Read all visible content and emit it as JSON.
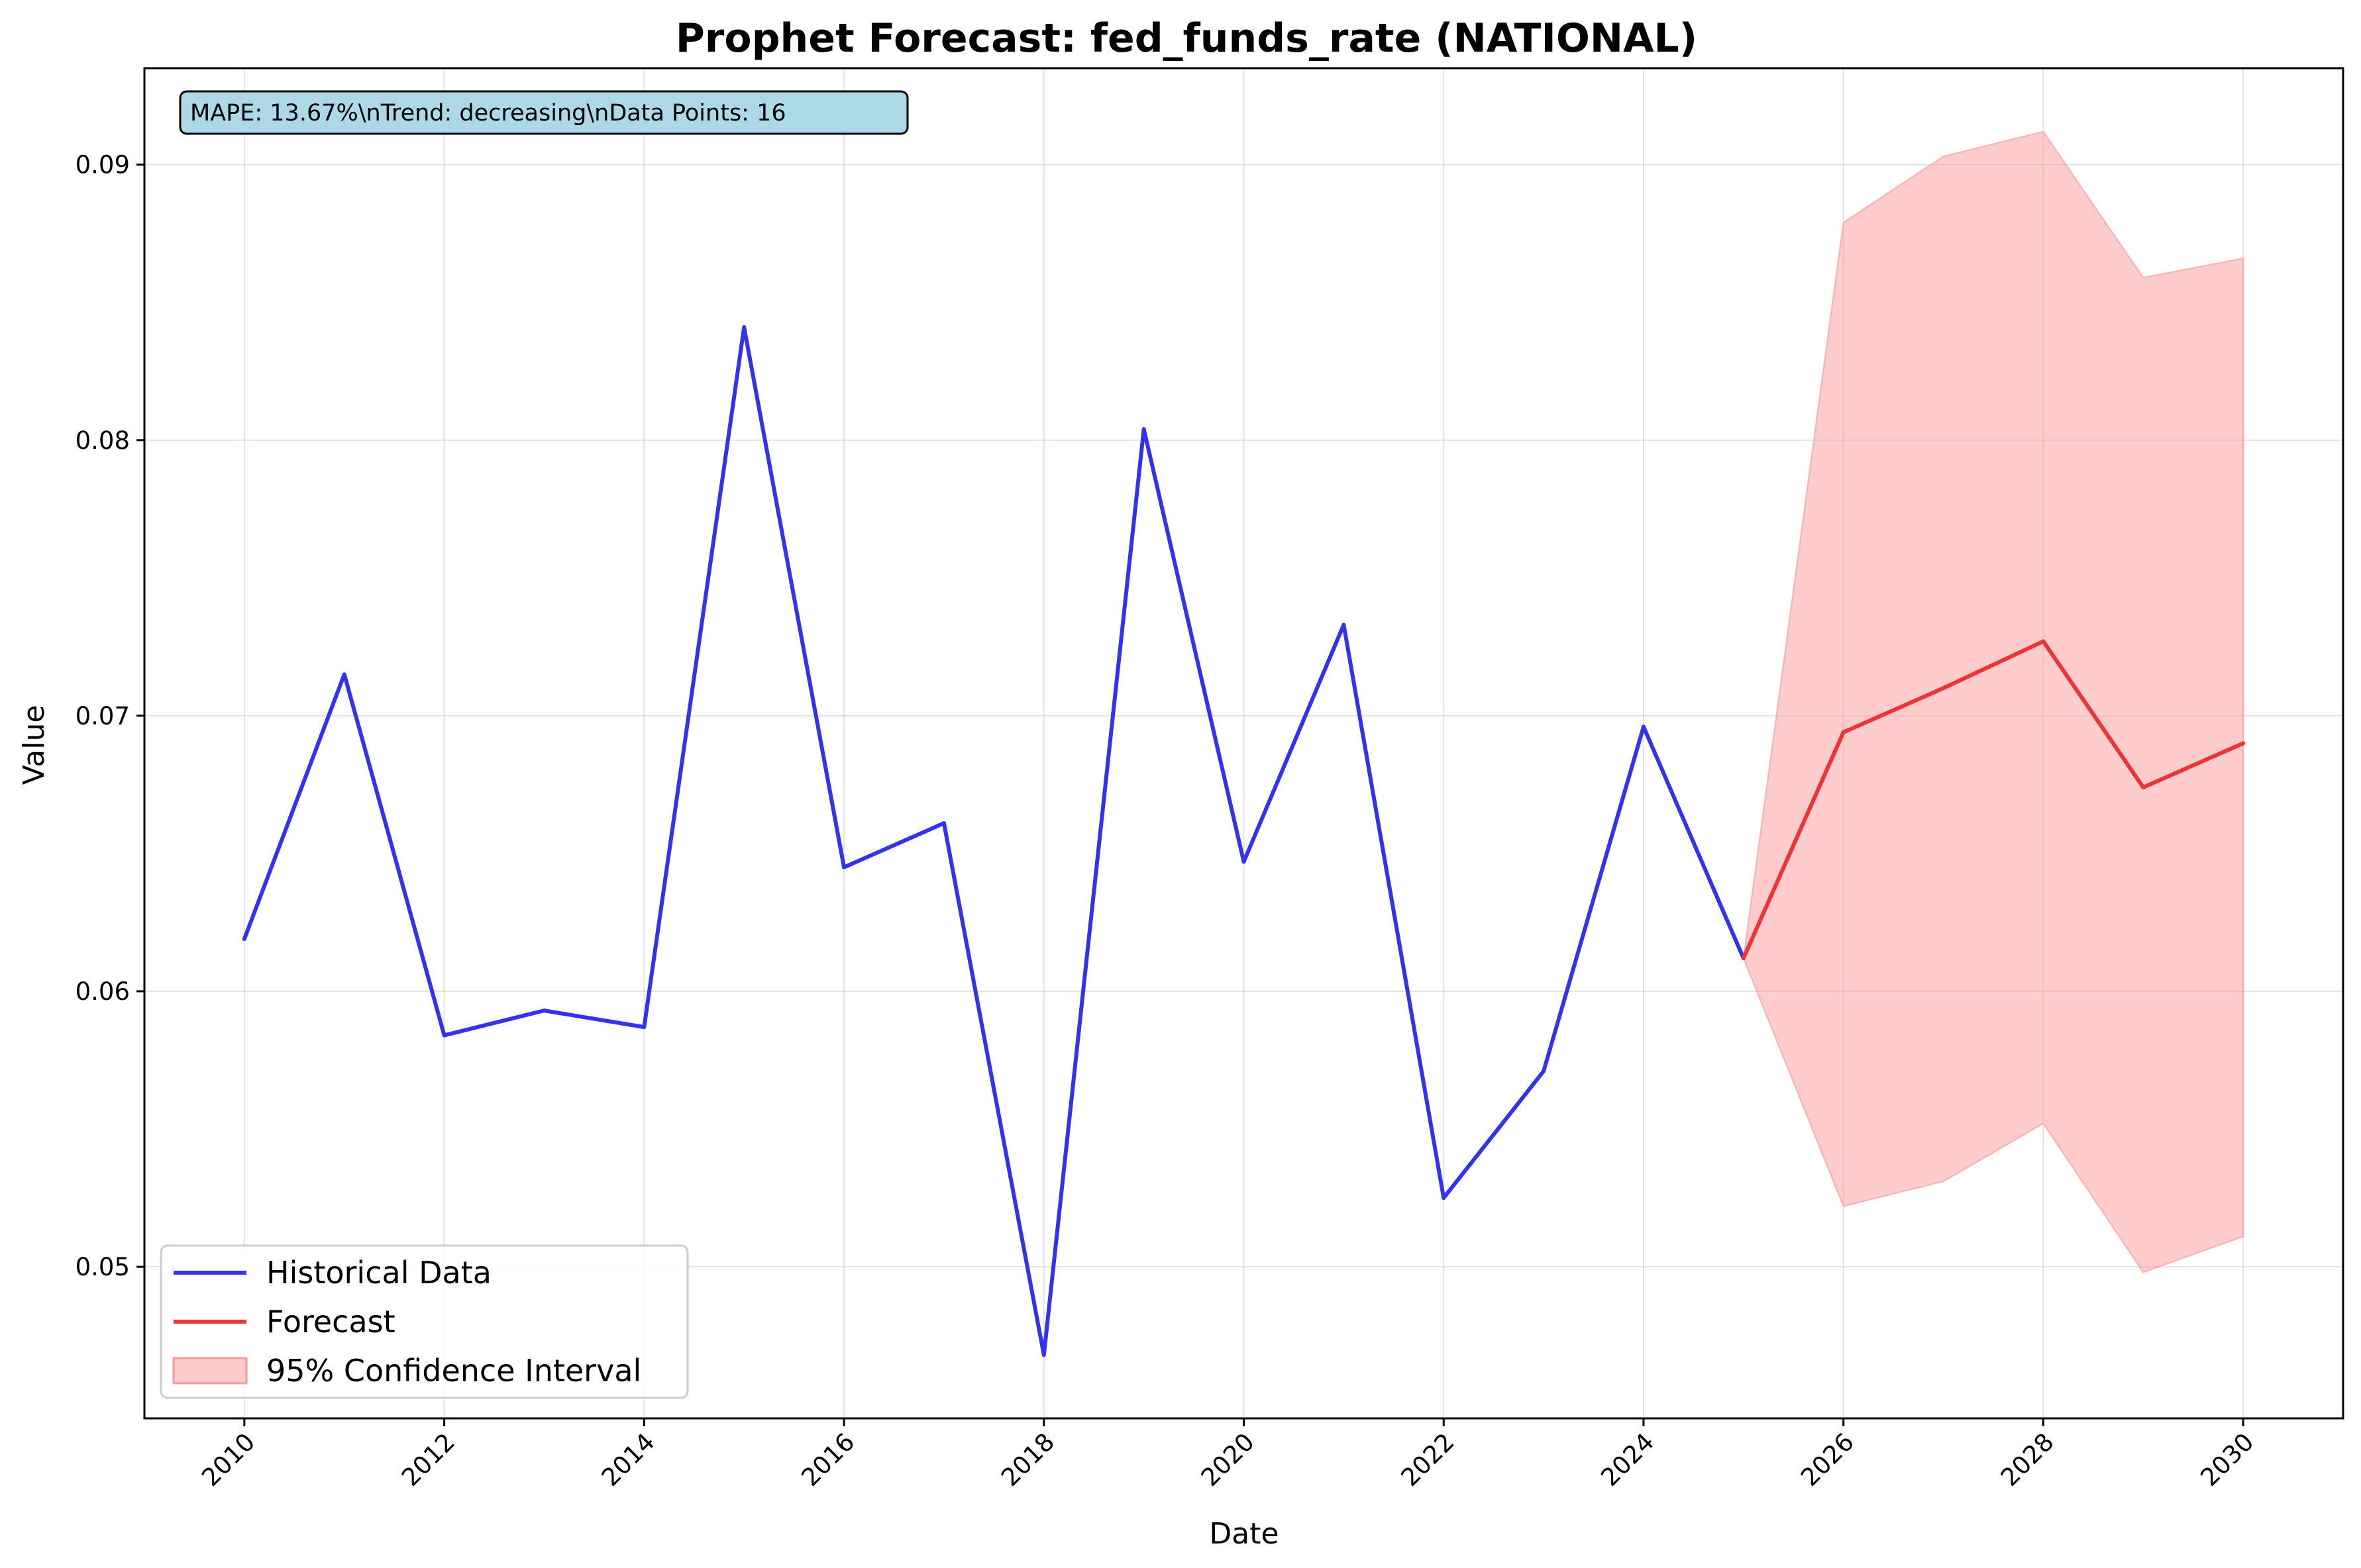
{
  "chart_data": {
    "type": "line",
    "title": "Prophet Forecast: fed_funds_rate (NATIONAL)",
    "xlabel": "Date",
    "ylabel": "Value",
    "xlim": [
      2009.0,
      2031.0
    ],
    "ylim": [
      0.0445,
      0.0935
    ],
    "x_ticks": [
      "2010",
      "2012",
      "2014",
      "2016",
      "2018",
      "2020",
      "2022",
      "2024",
      "2026",
      "2028",
      "2030"
    ],
    "y_ticks": [
      "0.05",
      "0.06",
      "0.07",
      "0.08",
      "0.09"
    ],
    "grid": true,
    "legend_position": "lower-left",
    "annotation": "MAPE: 13.67%\\nTrend: decreasing\\nData Points: 16",
    "series": [
      {
        "name": "Historical Data",
        "kind": "line",
        "color": "#3333ee",
        "x": [
          2010,
          2011,
          2012,
          2013,
          2014,
          2015,
          2016,
          2017,
          2018,
          2019,
          2020,
          2021,
          2022,
          2023,
          2024,
          2025
        ],
        "values": [
          0.0619,
          0.0715,
          0.0584,
          0.0593,
          0.0587,
          0.0841,
          0.0645,
          0.0661,
          0.0468,
          0.0804,
          0.0647,
          0.0733,
          0.0525,
          0.0571,
          0.0696,
          0.0612
        ]
      },
      {
        "name": "Forecast",
        "kind": "line",
        "color": "#ee3333",
        "x": [
          2025,
          2026,
          2027,
          2028,
          2029,
          2030
        ],
        "values": [
          0.0612,
          0.0694,
          0.071,
          0.0727,
          0.0674,
          0.069
        ]
      },
      {
        "name": "95% Confidence Interval",
        "kind": "band",
        "color": "#ff9999",
        "x": [
          2025,
          2026,
          2027,
          2028,
          2029,
          2030
        ],
        "lower": [
          0.0612,
          0.0522,
          0.0531,
          0.0552,
          0.0498,
          0.0511
        ],
        "upper": [
          0.0612,
          0.0879,
          0.0903,
          0.0912,
          0.0859,
          0.0866
        ]
      }
    ]
  }
}
